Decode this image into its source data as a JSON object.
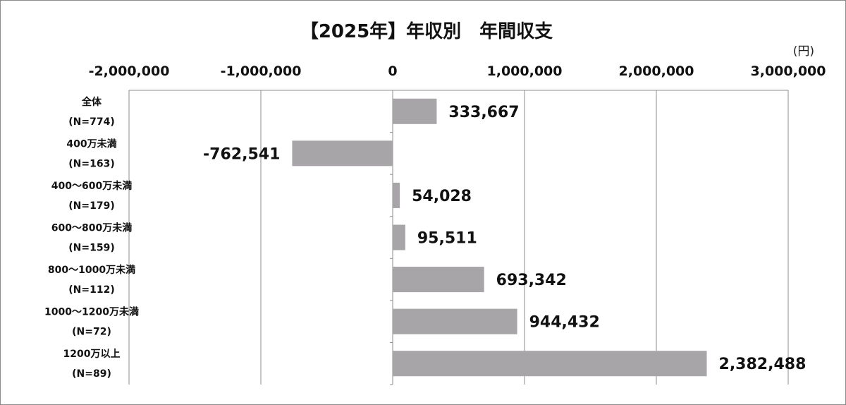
{
  "chart_data": {
    "type": "bar",
    "orientation": "horizontal",
    "title": "【2025年】年収別　年間収支",
    "unit_label": "(円)",
    "categories": [
      {
        "label": "全体",
        "n": "(N=774)"
      },
      {
        "label": "400万未満",
        "n": "(N=163)"
      },
      {
        "label": "400〜600万未満",
        "n": "(N=179)"
      },
      {
        "label": "600〜800万未満",
        "n": "(N=159)"
      },
      {
        "label": "800〜1000万未満",
        "n": "(N=112)"
      },
      {
        "label": "1000〜1200万未満",
        "n": "(N=72)"
      },
      {
        "label": "1200万以上",
        "n": "(N=89)"
      }
    ],
    "values": [
      333667,
      -762541,
      54028,
      95511,
      693342,
      944432,
      2382488
    ],
    "value_labels": [
      "333,667",
      "-762,541",
      "54,028",
      "95,511",
      "693,342",
      "944,432",
      "2,382,488"
    ],
    "xlim": [
      -2000000,
      3000000
    ],
    "xticks": [
      -2000000,
      -1000000,
      0,
      1000000,
      2000000,
      3000000
    ],
    "xtick_labels": [
      "-2,000,000",
      "-1,000,000",
      "0",
      "1,000,000",
      "2,000,000",
      "3,000,000"
    ],
    "axis_position": "top",
    "grid": true,
    "legend": "none",
    "colors": {
      "bar": "#a7a5a8",
      "grid": "#8c8c8c",
      "text": "#111111"
    }
  }
}
